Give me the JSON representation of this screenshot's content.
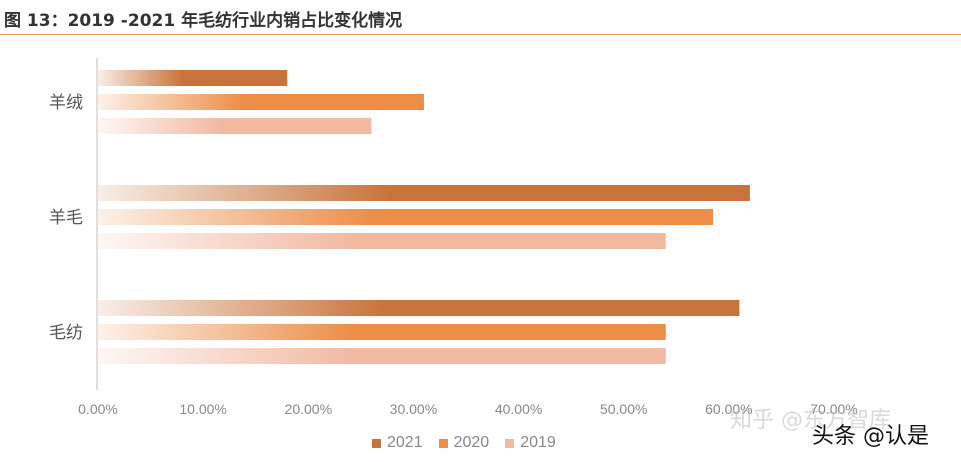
{
  "chart_data": {
    "type": "bar",
    "orientation": "horizontal",
    "title": "图 13：2019 -2021 年毛纺行业内销占比变化情况",
    "categories": [
      "羊绒",
      "羊毛",
      "毛纺"
    ],
    "series": [
      {
        "name": "2021",
        "color": "#c8733a",
        "values": [
          0.18,
          0.62,
          0.61
        ]
      },
      {
        "name": "2020",
        "color": "#ec8d48",
        "values": [
          0.31,
          0.585,
          0.54
        ]
      },
      {
        "name": "2019",
        "color": "#f2b9a2",
        "values": [
          0.26,
          0.54,
          0.54
        ]
      }
    ],
    "xlim": [
      0,
      0.7
    ],
    "xticks": [
      "0.00%",
      "10.00%",
      "20.00%",
      "30.00%",
      "40.00%",
      "50.00%",
      "60.00%",
      "70.00%"
    ],
    "grid": false,
    "legend_position": "bottom"
  },
  "watermark": "知乎 @东方智库",
  "source_tag": "头条 @认是"
}
